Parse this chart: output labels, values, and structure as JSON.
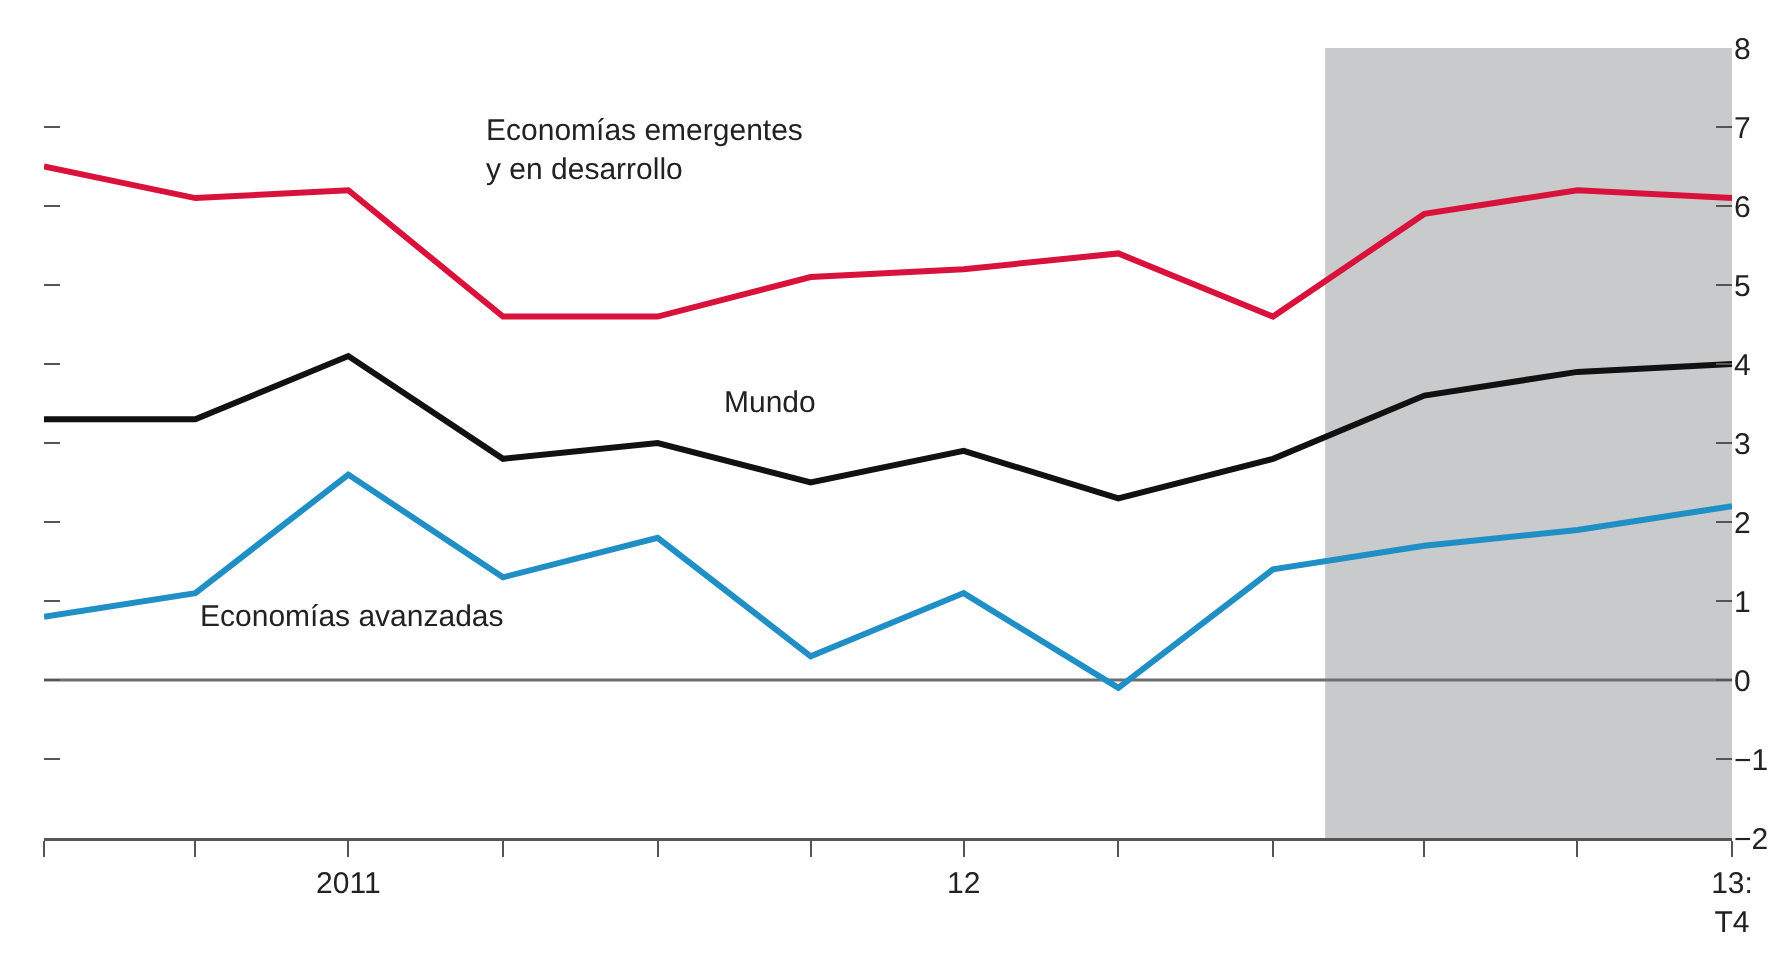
{
  "chart_data": {
    "type": "line",
    "x": [
      "2011-01",
      "2011-04",
      "2011-07",
      "2011-10",
      "2012-01",
      "2012-04",
      "2012-07",
      "2012-10",
      "2013-01",
      "2013-04",
      "2013-07",
      "2013-10"
    ],
    "xlim": [
      "2011-01",
      "2013-10"
    ],
    "xticks": [
      {
        "value": "2011-01",
        "label": null
      },
      {
        "value": "2011-04",
        "label": null
      },
      {
        "value": "2011-07",
        "label": "2011"
      },
      {
        "value": "2011-10",
        "label": null
      },
      {
        "value": "2012-01",
        "label": null
      },
      {
        "value": "2012-04",
        "label": null
      },
      {
        "value": "2012-07",
        "label": "12"
      },
      {
        "value": "2012-10",
        "label": null
      },
      {
        "value": "2013-01",
        "label": null
      },
      {
        "value": "2013-04",
        "label": null
      },
      {
        "value": "2013-07",
        "label": null
      },
      {
        "value": "2013-10",
        "label": "13:\nT4"
      }
    ],
    "ylim": [
      -2,
      8
    ],
    "yticks": [
      {
        "value": -2,
        "label": "−2"
      },
      {
        "value": -1,
        "label": "−1"
      },
      0,
      1,
      2,
      3,
      4,
      5,
      6,
      7,
      8
    ],
    "series": [
      {
        "name": "Economías emergentes\ny en desarrollo",
        "color": "#d9123c",
        "values": [
          6.5,
          6.1,
          6.2,
          4.6,
          4.6,
          5.1,
          5.2,
          5.4,
          4.6,
          5.9,
          6.2,
          6.1
        ]
      },
      {
        "name": "Mundo",
        "color": "#111111",
        "values": [
          3.3,
          3.3,
          4.1,
          2.8,
          3.0,
          2.5,
          2.9,
          2.3,
          2.8,
          3.6,
          3.9,
          4.0
        ]
      },
      {
        "name": "Economías avanzadas",
        "color": "#1f8fc6",
        "values": [
          0.8,
          1.1,
          2.6,
          1.3,
          1.8,
          0.3,
          1.1,
          -0.1,
          1.4,
          1.7,
          1.9,
          2.2
        ]
      }
    ],
    "ref_lines": [
      {
        "axis": "y",
        "value": 0,
        "color": "#6e6e6e"
      }
    ],
    "bands": [
      {
        "axis": "x",
        "from": "2013-02-01",
        "to": "2013-10",
        "color": "#c9cacc"
      }
    ],
    "marker": "none",
    "line_style": "solid",
    "grid": false,
    "legend": false
  }
}
